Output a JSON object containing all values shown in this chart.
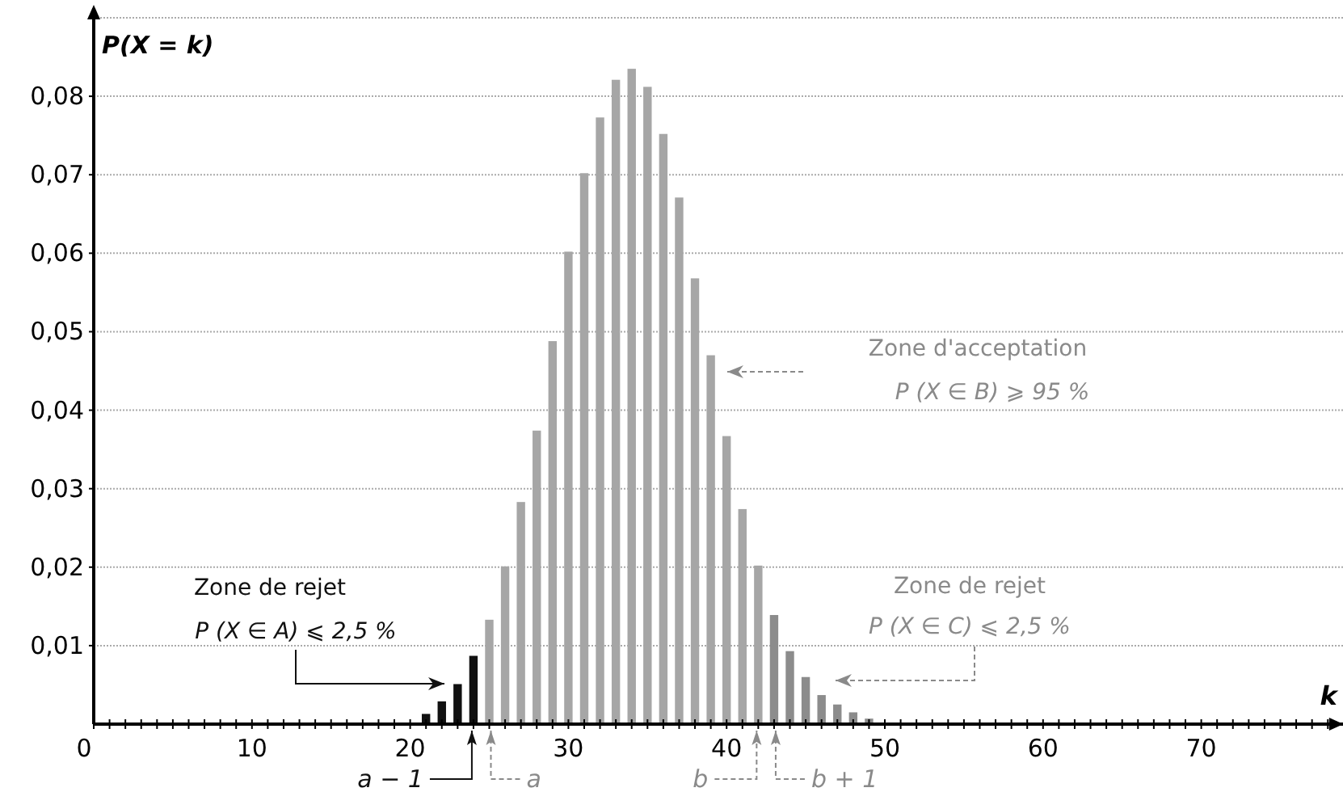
{
  "chart_data": {
    "type": "bar",
    "xlabel": "k",
    "ylabel": "P(X = k)",
    "xlim": [
      0,
      79
    ],
    "xticks": [
      {
        "value": 0,
        "label": "0"
      },
      {
        "value": 1,
        "label": null
      },
      {
        "value": 2,
        "label": null
      },
      {
        "value": 3,
        "label": null
      },
      {
        "value": 4,
        "label": null
      },
      {
        "value": 5,
        "label": null
      },
      {
        "value": 6,
        "label": null
      },
      {
        "value": 7,
        "label": null
      },
      {
        "value": 8,
        "label": null
      },
      {
        "value": 9,
        "label": null
      },
      10,
      {
        "value": 11,
        "label": null
      },
      {
        "value": 12,
        "label": null
      },
      {
        "value": 13,
        "label": null
      },
      {
        "value": 14,
        "label": null
      },
      {
        "value": 15,
        "label": null
      },
      {
        "value": 16,
        "label": null
      },
      {
        "value": 17,
        "label": null
      },
      {
        "value": 18,
        "label": null
      },
      {
        "value": 19,
        "label": null
      },
      20,
      {
        "value": 21,
        "label": null
      },
      {
        "value": 22,
        "label": null
      },
      {
        "value": 23,
        "label": null
      },
      {
        "value": 24,
        "label": null
      },
      {
        "value": 25,
        "label": null
      },
      {
        "value": 26,
        "label": null
      },
      {
        "value": 27,
        "label": null
      },
      {
        "value": 28,
        "label": null
      },
      {
        "value": 29,
        "label": null
      },
      30,
      {
        "value": 31,
        "label": null
      },
      {
        "value": 32,
        "label": null
      },
      {
        "value": 33,
        "label": null
      },
      {
        "value": 34,
        "label": null
      },
      {
        "value": 35,
        "label": null
      },
      {
        "value": 36,
        "label": null
      },
      {
        "value": 37,
        "label": null
      },
      {
        "value": 38,
        "label": null
      },
      {
        "value": 39,
        "label": null
      },
      40,
      {
        "value": 41,
        "label": null
      },
      {
        "value": 42,
        "label": null
      },
      {
        "value": 43,
        "label": null
      },
      {
        "value": 44,
        "label": null
      },
      {
        "value": 45,
        "label": null
      },
      {
        "value": 46,
        "label": null
      },
      {
        "value": 47,
        "label": null
      },
      {
        "value": 48,
        "label": null
      },
      {
        "value": 49,
        "label": null
      },
      50,
      {
        "value": 51,
        "label": null
      },
      {
        "value": 52,
        "label": null
      },
      {
        "value": 53,
        "label": null
      },
      {
        "value": 54,
        "label": null
      },
      {
        "value": 55,
        "label": null
      },
      {
        "value": 56,
        "label": null
      },
      {
        "value": 57,
        "label": null
      },
      {
        "value": 58,
        "label": null
      },
      {
        "value": 59,
        "label": null
      },
      60,
      {
        "value": 61,
        "label": null
      },
      {
        "value": 62,
        "label": null
      },
      {
        "value": 63,
        "label": null
      },
      {
        "value": 64,
        "label": null
      },
      {
        "value": 65,
        "label": null
      },
      {
        "value": 66,
        "label": null
      },
      {
        "value": 67,
        "label": null
      },
      {
        "value": 68,
        "label": null
      },
      {
        "value": 69,
        "label": null
      },
      70,
      {
        "value": 71,
        "label": null
      },
      {
        "value": 72,
        "label": null
      },
      {
        "value": 73,
        "label": null
      },
      {
        "value": 74,
        "label": null
      },
      {
        "value": 75,
        "label": null
      },
      {
        "value": 76,
        "label": null
      },
      {
        "value": 77,
        "label": null
      },
      {
        "value": 78,
        "label": null
      }
    ],
    "ylim": [
      0,
      0.09
    ],
    "yticks": [
      {
        "value": 0.01,
        "label": "0,01"
      },
      {
        "value": 0.02,
        "label": "0,02"
      },
      {
        "value": 0.03,
        "label": "0,03"
      },
      {
        "value": 0.04,
        "label": "0,04"
      },
      {
        "value": 0.05,
        "label": "0,05"
      },
      {
        "value": 0.06,
        "label": "0,06"
      },
      {
        "value": 0.07,
        "label": "0,07"
      },
      {
        "value": 0.08,
        "label": "0,08"
      },
      {
        "value": 0.09,
        "label": null
      }
    ],
    "grid": "y",
    "series": [
      {
        "color": "#111111",
        "x": [
          21,
          22,
          23,
          24
        ],
        "values": [
          0.0013,
          0.0029,
          0.0051,
          0.0087
        ]
      },
      {
        "color": "#a6a6a6",
        "x": [
          25,
          26,
          27,
          28,
          29,
          30,
          31,
          32,
          33,
          34,
          35,
          36,
          37,
          38,
          39,
          40,
          41,
          42
        ],
        "values": [
          0.0133,
          0.0201,
          0.0283,
          0.0374,
          0.0488,
          0.0602,
          0.0702,
          0.0773,
          0.0821,
          0.0835,
          0.0812,
          0.0752,
          0.0671,
          0.0568,
          0.047,
          0.0367,
          0.0274,
          0.0202
        ]
      },
      {
        "color": "#8c8c8c",
        "x": [
          43,
          44,
          45,
          46,
          47,
          48,
          49
        ],
        "values": [
          0.0139,
          0.0093,
          0.006,
          0.0037,
          0.0025,
          0.0015,
          0.0007
        ]
      }
    ],
    "annotations": [
      "Zone de rejet",
      "P (X ∈ A) ⩽ 2,5 %",
      "Zone d'acceptation",
      "P (X ∈ B) ⩾ 95 %",
      "Zone de rejet",
      "P (X ∈ C) ⩽ 2,5 %",
      {
        "text": "a − 1",
        "x": 24,
        "y": 0
      },
      {
        "text": "a",
        "x": 25,
        "y": 0
      },
      {
        "text": "b",
        "x": 42,
        "y": 0
      },
      {
        "text": "b + 1",
        "x": 43,
        "y": 0
      }
    ]
  }
}
